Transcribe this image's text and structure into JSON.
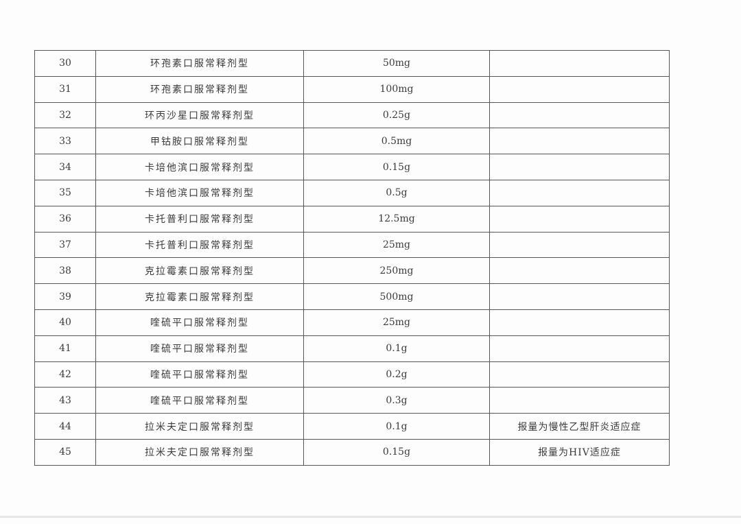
{
  "table": {
    "rows": [
      {
        "no": "30",
        "name": "环孢素口服常释剂型",
        "spec": "50mg",
        "note": ""
      },
      {
        "no": "31",
        "name": "环孢素口服常释剂型",
        "spec": "100mg",
        "note": ""
      },
      {
        "no": "32",
        "name": "环丙沙星口服常释剂型",
        "spec": "0.25g",
        "note": ""
      },
      {
        "no": "33",
        "name": "甲钴胺口服常释剂型",
        "spec": "0.5mg",
        "note": ""
      },
      {
        "no": "34",
        "name": "卡培他滨口服常释剂型",
        "spec": "0.15g",
        "note": ""
      },
      {
        "no": "35",
        "name": "卡培他滨口服常释剂型",
        "spec": "0.5g",
        "note": ""
      },
      {
        "no": "36",
        "name": "卡托普利口服常释剂型",
        "spec": "12.5mg",
        "note": ""
      },
      {
        "no": "37",
        "name": "卡托普利口服常释剂型",
        "spec": "25mg",
        "note": ""
      },
      {
        "no": "38",
        "name": "克拉霉素口服常释剂型",
        "spec": "250mg",
        "note": ""
      },
      {
        "no": "39",
        "name": "克拉霉素口服常释剂型",
        "spec": "500mg",
        "note": ""
      },
      {
        "no": "40",
        "name": "喹硫平口服常释剂型",
        "spec": "25mg",
        "note": ""
      },
      {
        "no": "41",
        "name": "喹硫平口服常释剂型",
        "spec": "0.1g",
        "note": ""
      },
      {
        "no": "42",
        "name": "喹硫平口服常释剂型",
        "spec": "0.2g",
        "note": ""
      },
      {
        "no": "43",
        "name": "喹硫平口服常释剂型",
        "spec": "0.3g",
        "note": ""
      },
      {
        "no": "44",
        "name": "拉米夫定口服常释剂型",
        "spec": "0.1g",
        "note": "报量为慢性乙型肝炎适应症"
      },
      {
        "no": "45",
        "name": "拉米夫定口服常释剂型",
        "spec": "0.15g",
        "note": "报量为HIV适应症"
      }
    ]
  }
}
